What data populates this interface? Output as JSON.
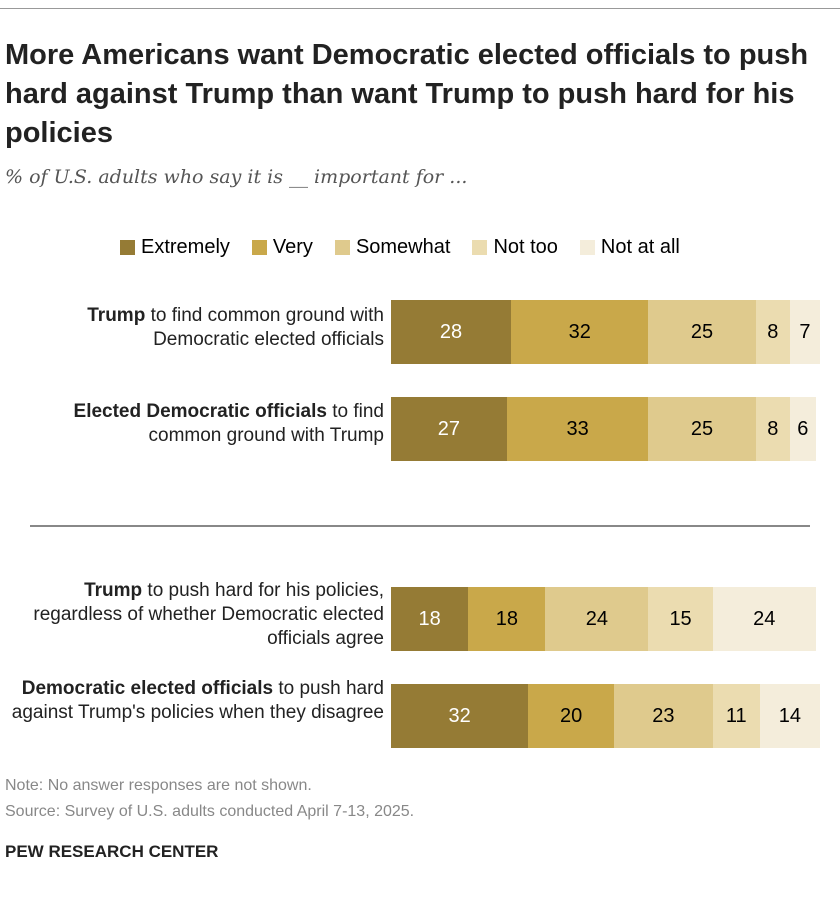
{
  "title": "More Americans want Democratic elected officials to push hard against Trump than want Trump to push hard for his policies",
  "subtitle": "% of U.S. adults who say it is __ important for ...",
  "note": "Note: No answer responses are not shown.",
  "source": "Source: Survey of U.S. adults conducted April 7-13, 2025.",
  "brand": "PEW RESEARCH CENTER",
  "chart_data": {
    "type": "bar",
    "orientation": "horizontal-stacked",
    "legend_position": "top",
    "series": [
      {
        "name": "Extremely",
        "color": "#957b35"
      },
      {
        "name": "Very",
        "color": "#c9a84a"
      },
      {
        "name": "Somewhat",
        "color": "#dfca8d"
      },
      {
        "name": "Not too",
        "color": "#ebdcb0"
      },
      {
        "name": "Not at all",
        "color": "#f4eddb"
      }
    ],
    "rows": [
      {
        "bold": "Trump",
        "rest": " to find common ground with Democratic elected officials",
        "values": [
          28,
          32,
          25,
          8,
          7
        ]
      },
      {
        "bold": "Elected Democratic officials",
        "rest": " to find common ground with Trump",
        "values": [
          27,
          33,
          25,
          8,
          6
        ]
      },
      {
        "bold": "Trump",
        "rest": " to push hard for his policies, regardless of whether Democratic elected officials agree",
        "values": [
          18,
          18,
          24,
          15,
          24
        ]
      },
      {
        "bold": "Democratic elected officials",
        "rest": " to push hard against Trump's policies when they disagree",
        "values": [
          32,
          20,
          23,
          11,
          14
        ]
      }
    ]
  }
}
